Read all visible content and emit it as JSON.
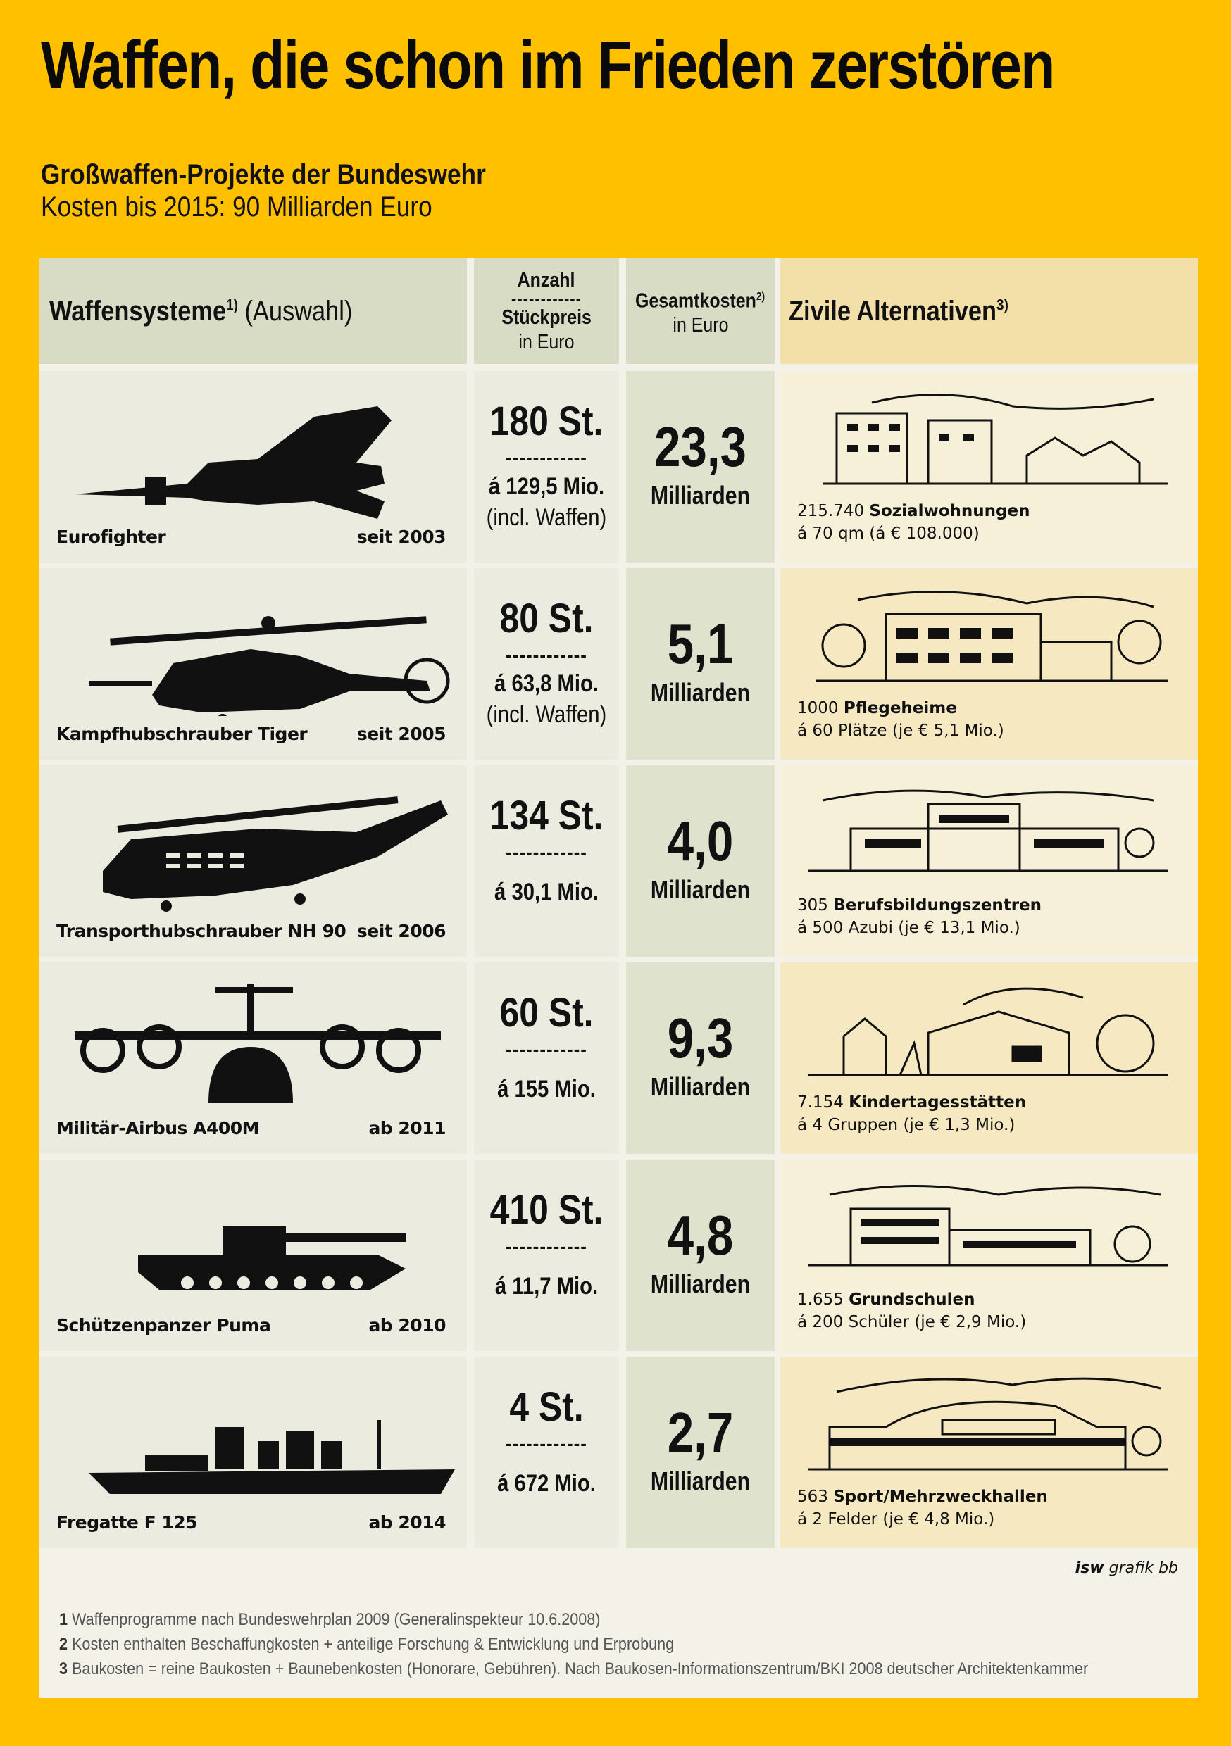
{
  "title": "Waffen, die schon im Frieden zerstören",
  "subtitle": "Großwaffen-Projekte der Bundeswehr",
  "subtitle2": "Kosten bis 2015: 90 Milliarden Euro",
  "header": {
    "col1_main": "Waffensysteme",
    "col1_sup": "1)",
    "col1_suffix": " (Auswahl)",
    "col2_line1": "Anzahl",
    "col2_dash": "------------",
    "col2_line2": "Stückpreis",
    "col2_line3": "in Euro",
    "col3_line1": "Gesamtkosten",
    "col3_sup": "2)",
    "col3_line2": "in Euro",
    "col4_main": "Zivile Alternativen",
    "col4_sup": "3)"
  },
  "rows": [
    {
      "weapon": "Eurofighter",
      "since": "seit 2003",
      "icon": "fighter-jet-icon",
      "quantity": "180 St.",
      "dash": "------------",
      "unit_price": "á 129,5 Mio.",
      "price_note": "(incl. Waffen)",
      "total": "23,3",
      "total_unit": "Milliarden",
      "alt_number": "215.740 ",
      "alt_name": "Sozialwohnungen",
      "alt_detail": "á 70 qm (á € 108.000)",
      "alt_icon": "apartment-buildings-icon"
    },
    {
      "weapon": "Kampfhubschrauber Tiger",
      "since": "seit 2005",
      "icon": "attack-helicopter-icon",
      "quantity": "80 St.",
      "dash": "------------",
      "unit_price": "á 63,8 Mio.",
      "price_note": "(incl. Waffen)",
      "total": "5,1",
      "total_unit": "Milliarden",
      "alt_number": "1000 ",
      "alt_name": "Pflegeheime",
      "alt_detail": "á 60 Plätze (je € 5,1 Mio.)",
      "alt_icon": "care-home-icon"
    },
    {
      "weapon": "Transporthubschrauber NH 90",
      "since": "seit 2006",
      "icon": "transport-helicopter-icon",
      "quantity": "134 St.",
      "dash": "------------",
      "unit_price": "á 30,1 Mio.",
      "price_note": "",
      "total": "4,0",
      "total_unit": "Milliarden",
      "alt_number": "305 ",
      "alt_name": "Berufsbildungszentren",
      "alt_detail": "á 500 Azubi (je € 13,1 Mio.)",
      "alt_icon": "training-center-icon"
    },
    {
      "weapon": "Militär-Airbus A400M",
      "since": "ab 2011",
      "icon": "transport-plane-icon",
      "quantity": "60 St.",
      "dash": "------------",
      "unit_price": "á 155 Mio.",
      "price_note": "",
      "total": "9,3",
      "total_unit": "Milliarden",
      "alt_number": "7.154 ",
      "alt_name": "Kindertagesstätten",
      "alt_detail": "á 4 Gruppen (je € 1,3 Mio.)",
      "alt_icon": "kindergarten-icon"
    },
    {
      "weapon": "Schützenpanzer Puma",
      "since": "ab 2010",
      "icon": "tank-icon",
      "quantity": "410 St.",
      "dash": "------------",
      "unit_price": "á 11,7 Mio.",
      "price_note": "",
      "total": "4,8",
      "total_unit": "Milliarden",
      "alt_number": "1.655 ",
      "alt_name": "Grundschulen",
      "alt_detail": "á 200 Schüler (je € 2,9 Mio.)",
      "alt_icon": "school-icon"
    },
    {
      "weapon": "Fregatte F 125",
      "since": "ab 2014",
      "icon": "frigate-icon",
      "quantity": "4 St.",
      "dash": "------------",
      "unit_price": "á 672 Mio.",
      "price_note": "",
      "total": "2,7",
      "total_unit": "Milliarden",
      "alt_number": "563 ",
      "alt_name": "Sport/Mehrzweckhallen",
      "alt_detail": "á 2 Felder (je € 4,8 Mio.)",
      "alt_icon": "sports-hall-icon"
    }
  ],
  "credit_bold": "isw",
  "credit_rest": " grafik bb",
  "footnotes": [
    {
      "num": "1",
      "text": " Waffenprogramme nach Bundeswehrplan 2009 (Generalinspekteur 10.6.2008)"
    },
    {
      "num": "2",
      "text": " Kosten enthalten Beschaffungkosten + anteilige Forschung & Entwicklung und Erprobung"
    },
    {
      "num": "3",
      "text": " Baukosten = reine Baukosten + Baunebenkosten (Honorare, Gebühren). Nach Baukosen-Informationszentrum/BKI 2008 deutscher Architektenkammer"
    }
  ],
  "chart_data": {
    "type": "table",
    "columns": [
      "Waffensysteme (Auswahl)",
      "Anzahl / Stückpreis in Euro",
      "Gesamtkosten in Euro",
      "Zivile Alternativen"
    ],
    "categories": [
      "Eurofighter",
      "Kampfhubschrauber Tiger",
      "Transporthubschrauber NH 90",
      "Militär-Airbus A400M",
      "Schützenpanzer Puma",
      "Fregatte F 125"
    ],
    "quantity": [
      180,
      80,
      134,
      60,
      410,
      4
    ],
    "unit_price_mio_eur": [
      129.5,
      63.8,
      30.1,
      155,
      11.7,
      672
    ],
    "total_cost_mrd_eur": [
      23.3,
      5.1,
      4.0,
      9.3,
      4.8,
      2.7
    ],
    "start_year": [
      2003,
      2005,
      2006,
      2011,
      2010,
      2014
    ],
    "alternatives": [
      {
        "count": 215740,
        "item": "Sozialwohnungen"
      },
      {
        "count": 1000,
        "item": "Pflegeheime"
      },
      {
        "count": 305,
        "item": "Berufsbildungszentren"
      },
      {
        "count": 7154,
        "item": "Kindertagesstätten"
      },
      {
        "count": 1655,
        "item": "Grundschulen"
      },
      {
        "count": 563,
        "item": "Sport/Mehrzweckhallen"
      }
    ]
  }
}
